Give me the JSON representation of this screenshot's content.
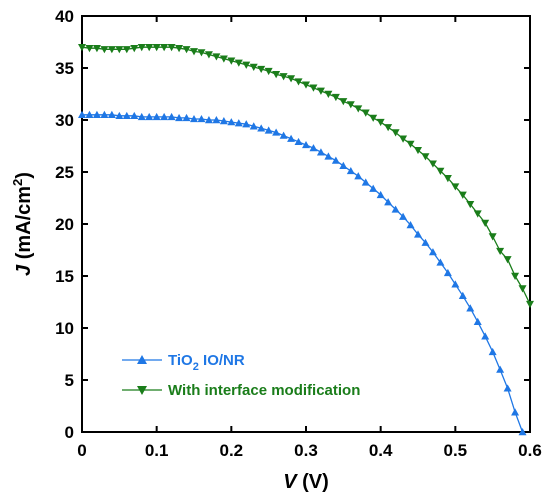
{
  "chart_data": {
    "type": "line",
    "xlabel": {
      "var": "V",
      "rest": " (V)"
    },
    "ylabel": {
      "var": "J",
      "rest": " (mA/cm",
      "sup": "2",
      "end": ")"
    },
    "xlim": [
      0,
      0.6
    ],
    "ylim": [
      0,
      40
    ],
    "xticks": [
      "0",
      "0.1",
      "0.2",
      "0.3",
      "0.4",
      "0.5",
      "0.6"
    ],
    "yticks": [
      "0",
      "5",
      "10",
      "15",
      "20",
      "25",
      "30",
      "35",
      "40"
    ],
    "grid": false,
    "legend_position": "bottom-left",
    "series": [
      {
        "name": "TiO",
        "name_sub": "2",
        "name_rest": " IO/NR",
        "color": "#1f77e5",
        "marker": "triangle-up",
        "x": [
          0,
          0.01,
          0.02,
          0.03,
          0.04,
          0.05,
          0.06,
          0.07,
          0.08,
          0.09,
          0.1,
          0.11,
          0.12,
          0.13,
          0.14,
          0.15,
          0.16,
          0.17,
          0.18,
          0.19,
          0.2,
          0.21,
          0.22,
          0.23,
          0.24,
          0.25,
          0.26,
          0.27,
          0.28,
          0.29,
          0.3,
          0.31,
          0.32,
          0.33,
          0.34,
          0.35,
          0.36,
          0.37,
          0.38,
          0.39,
          0.4,
          0.41,
          0.42,
          0.43,
          0.44,
          0.45,
          0.46,
          0.47,
          0.48,
          0.49,
          0.5,
          0.51,
          0.52,
          0.53,
          0.54,
          0.55,
          0.56,
          0.57,
          0.58,
          0.59
        ],
        "y": [
          30.5,
          30.5,
          30.5,
          30.5,
          30.5,
          30.4,
          30.4,
          30.4,
          30.3,
          30.3,
          30.3,
          30.3,
          30.3,
          30.2,
          30.2,
          30.1,
          30.1,
          30.0,
          30.0,
          29.9,
          29.8,
          29.7,
          29.6,
          29.4,
          29.2,
          29.0,
          28.8,
          28.5,
          28.2,
          27.9,
          27.6,
          27.3,
          26.9,
          26.5,
          26.1,
          25.6,
          25.1,
          24.6,
          24.0,
          23.4,
          22.8,
          22.1,
          21.4,
          20.7,
          19.9,
          19.0,
          18.2,
          17.3,
          16.3,
          15.3,
          14.2,
          13.1,
          11.9,
          10.6,
          9.2,
          7.7,
          6.0,
          4.2,
          1.9,
          0.0
        ]
      },
      {
        "name": "With interface modification",
        "color": "#1a7d1a",
        "marker": "triangle-down",
        "x": [
          0,
          0.01,
          0.02,
          0.03,
          0.04,
          0.05,
          0.06,
          0.07,
          0.08,
          0.09,
          0.1,
          0.11,
          0.12,
          0.13,
          0.14,
          0.15,
          0.16,
          0.17,
          0.18,
          0.19,
          0.2,
          0.21,
          0.22,
          0.23,
          0.24,
          0.25,
          0.26,
          0.27,
          0.28,
          0.29,
          0.3,
          0.31,
          0.32,
          0.33,
          0.34,
          0.35,
          0.36,
          0.37,
          0.38,
          0.39,
          0.4,
          0.41,
          0.42,
          0.43,
          0.44,
          0.45,
          0.46,
          0.47,
          0.48,
          0.49,
          0.5,
          0.51,
          0.52,
          0.53,
          0.54,
          0.55,
          0.56,
          0.57,
          0.58,
          0.59,
          0.6
        ],
        "y": [
          37.0,
          36.9,
          36.9,
          36.8,
          36.8,
          36.8,
          36.8,
          36.9,
          37.0,
          37.0,
          37.0,
          37.0,
          37.0,
          36.9,
          36.8,
          36.6,
          36.5,
          36.3,
          36.1,
          35.9,
          35.7,
          35.5,
          35.3,
          35.1,
          34.9,
          34.7,
          34.4,
          34.2,
          34.0,
          33.7,
          33.4,
          33.1,
          32.8,
          32.5,
          32.2,
          31.8,
          31.5,
          31.1,
          30.7,
          30.2,
          29.8,
          29.3,
          28.8,
          28.2,
          27.7,
          27.1,
          26.5,
          25.8,
          25.1,
          24.4,
          23.6,
          22.8,
          21.9,
          21.0,
          20.1,
          18.8,
          17.4,
          16.6,
          15.0,
          13.8,
          12.3
        ]
      }
    ]
  }
}
